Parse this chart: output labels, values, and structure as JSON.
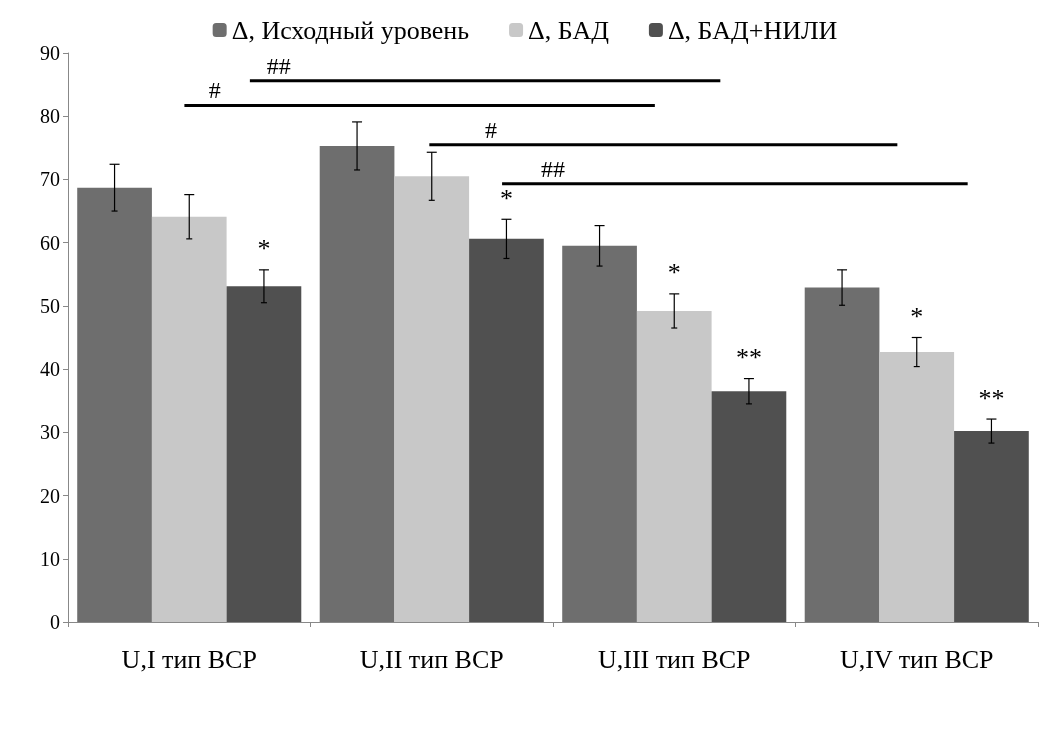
{
  "chart_data": {
    "type": "bar",
    "categories": [
      "U,I тип ВСР",
      "U,II тип ВСР",
      "U,III тип ВСР",
      "U,IV тип ВСР"
    ],
    "series": [
      {
        "name": "Δ, Исходный уровень",
        "color": "#6e6e6e",
        "values": [
          68.7,
          75.3,
          59.5,
          52.9
        ],
        "errors": [
          3.7,
          3.8,
          3.2,
          2.8
        ],
        "value_labels": [
          null,
          null,
          null,
          null
        ]
      },
      {
        "name": "Δ, БАД",
        "color": "#c8c8c8",
        "values": [
          64.1,
          70.5,
          49.2,
          42.7
        ],
        "errors": [
          3.5,
          3.8,
          2.7,
          2.3
        ],
        "value_labels": [
          null,
          null,
          "*",
          "*"
        ]
      },
      {
        "name": "Δ, БАД+НИЛИ",
        "color": "#505050",
        "values": [
          53.1,
          60.6,
          36.5,
          30.2
        ],
        "errors": [
          2.6,
          3.1,
          2.0,
          1.9
        ],
        "value_labels": [
          "*",
          "*",
          "**",
          "**"
        ]
      }
    ],
    "annotations": [
      "##",
      "#",
      "#",
      "##"
    ],
    "ylim": [
      0,
      90
    ],
    "yticks": [
      0,
      10,
      20,
      30,
      40,
      50,
      60,
      70,
      80,
      90
    ],
    "grid": false,
    "legend": "top"
  }
}
